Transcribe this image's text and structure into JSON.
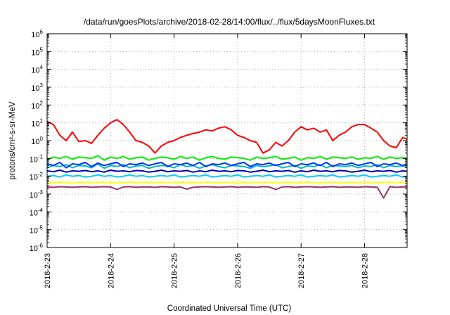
{
  "chart_data": {
    "type": "line",
    "title": "/data/run/goesPlots/archive/2018-02-28/14:00/flux/../flux/5daysMoonFluxes.txt",
    "xlabel": "Coordinated Universal Time (UTC)",
    "ylabel": "protons/cm²-s-sr-MeV",
    "y_scale": "log",
    "ylim": [
      1e-06,
      1000000.0
    ],
    "xlim": [
      "2018-2-23",
      "2018-2-28 16:00"
    ],
    "x_ticks": [
      "2018-2-23",
      "2018-2-24",
      "2018-2-25",
      "2018-2-26",
      "2018-2-27",
      "2018-2-28"
    ],
    "y_ticks": [
      {
        "base": "10",
        "exp": "-6"
      },
      {
        "base": "10",
        "exp": "-5"
      },
      {
        "base": "10",
        "exp": "-4"
      },
      {
        "base": "10",
        "exp": "-3"
      },
      {
        "base": "10",
        "exp": "-2"
      },
      {
        "base": "10",
        "exp": "-1"
      },
      {
        "base": "10",
        "exp": "0"
      },
      {
        "base": "10",
        "exp": "1"
      },
      {
        "base": "10",
        "exp": "2"
      },
      {
        "base": "10",
        "exp": "3"
      },
      {
        "base": "10",
        "exp": "4"
      },
      {
        "base": "10",
        "exp": "5"
      },
      {
        "base": "10",
        "exp": "6"
      }
    ],
    "grid": true,
    "x_days": [
      0,
      0.1,
      0.2,
      0.3,
      0.4,
      0.5,
      0.6,
      0.7,
      0.8,
      0.9,
      1.0,
      1.1,
      1.2,
      1.3,
      1.4,
      1.5,
      1.6,
      1.7,
      1.8,
      1.9,
      2.0,
      2.1,
      2.2,
      2.3,
      2.4,
      2.5,
      2.6,
      2.7,
      2.8,
      2.9,
      3.0,
      3.1,
      3.2,
      3.3,
      3.4,
      3.5,
      3.6,
      3.7,
      3.8,
      3.9,
      4.0,
      4.1,
      4.2,
      4.3,
      4.4,
      4.5,
      4.6,
      4.7,
      4.8,
      4.9,
      5.0,
      5.1,
      5.2,
      5.3,
      5.4,
      5.5,
      5.6,
      5.67
    ],
    "series": [
      {
        "color": "#ff0000",
        "values": [
          12,
          8,
          2,
          1,
          3,
          0.9,
          1,
          0.7,
          2,
          5,
          10,
          15,
          8,
          3,
          1,
          0.8,
          0.5,
          0.2,
          0.5,
          0.8,
          1,
          1.5,
          2,
          2.5,
          3,
          4,
          3.5,
          5,
          6,
          4,
          2,
          1.5,
          1,
          0.8,
          0.2,
          0.3,
          0.8,
          0.5,
          1,
          3,
          6,
          4,
          5,
          3,
          4,
          1,
          2,
          3,
          6,
          8,
          8,
          5,
          3,
          1,
          0.5,
          0.4,
          1.5,
          1.2
        ]
      },
      {
        "color": "#00ee00",
        "values": [
          0.08,
          0.12,
          0.1,
          0.13,
          0.09,
          0.12,
          0.11,
          0.1,
          0.14,
          0.08,
          0.12,
          0.1,
          0.13,
          0.09,
          0.11,
          0.12,
          0.08,
          0.1,
          0.12,
          0.11,
          0.09,
          0.13,
          0.1,
          0.12,
          0.08,
          0.11,
          0.13,
          0.1,
          0.09,
          0.12,
          0.11,
          0.1,
          0.08,
          0.12,
          0.1,
          0.11,
          0.13,
          0.09,
          0.1,
          0.12,
          0.08,
          0.11,
          0.1,
          0.13,
          0.09,
          0.12,
          0.11,
          0.1,
          0.12,
          0.09,
          0.11,
          0.1,
          0.13,
          0.09,
          0.12,
          0.1,
          0.11,
          0.1
        ]
      },
      {
        "color": "#00bbbb",
        "values": [
          0.03,
          0.04,
          0.035,
          0.045,
          0.03,
          0.04,
          0.038,
          0.03,
          0.05,
          0.028,
          0.04,
          0.035,
          0.045,
          0.03,
          0.038,
          0.04,
          0.028,
          0.035,
          0.04,
          0.038,
          0.03,
          0.045,
          0.035,
          0.04,
          0.028,
          0.038,
          0.045,
          0.035,
          0.03,
          0.04,
          0.038,
          0.035,
          0.028,
          0.04,
          0.035,
          0.038,
          0.045,
          0.03,
          0.035,
          0.04,
          0.028,
          0.038,
          0.035,
          0.045,
          0.03,
          0.04,
          0.038,
          0.035,
          0.04,
          0.03,
          0.038,
          0.035,
          0.045,
          0.03,
          0.04,
          0.035,
          0.038,
          0.035
        ]
      },
      {
        "color": "#0033ff",
        "values": [
          0.05,
          0.04,
          0.06,
          0.03,
          0.05,
          0.045,
          0.06,
          0.035,
          0.055,
          0.04,
          0.05,
          0.06,
          0.035,
          0.05,
          0.045,
          0.055,
          0.04,
          0.05,
          0.06,
          0.035,
          0.05,
          0.045,
          0.055,
          0.04,
          0.06,
          0.035,
          0.05,
          0.045,
          0.055,
          0.04,
          0.05,
          0.06,
          0.035,
          0.05,
          0.045,
          0.055,
          0.04,
          0.05,
          0.06,
          0.035,
          0.05,
          0.045,
          0.055,
          0.04,
          0.06,
          0.035,
          0.05,
          0.045,
          0.055,
          0.04,
          0.05,
          0.06,
          0.035,
          0.05,
          0.045,
          0.055,
          0.04,
          0.05
        ]
      },
      {
        "color": "#0000aa",
        "values": [
          0.02,
          0.018,
          0.022,
          0.017,
          0.02,
          0.019,
          0.021,
          0.018,
          0.02,
          0.017,
          0.022,
          0.019,
          0.02,
          0.018,
          0.021,
          0.02,
          0.017,
          0.019,
          0.022,
          0.018,
          0.02,
          0.019,
          0.021,
          0.017,
          0.02,
          0.018,
          0.022,
          0.019,
          0.02,
          0.018,
          0.021,
          0.02,
          0.017,
          0.019,
          0.022,
          0.018,
          0.02,
          0.019,
          0.021,
          0.017,
          0.02,
          0.018,
          0.022,
          0.019,
          0.02,
          0.018,
          0.021,
          0.02,
          0.017,
          0.019,
          0.022,
          0.018,
          0.02,
          0.019,
          0.021,
          0.017,
          0.02,
          0.019
        ]
      },
      {
        "color": "#00ccff",
        "values": [
          0.01,
          0.011,
          0.009,
          0.012,
          0.01,
          0.011,
          0.009,
          0.01,
          0.012,
          0.01,
          0.011,
          0.009,
          0.01,
          0.012,
          0.01,
          0.011,
          0.009,
          0.01,
          0.011,
          0.01,
          0.012,
          0.009,
          0.01,
          0.011,
          0.01,
          0.012,
          0.009,
          0.01,
          0.011,
          0.01,
          0.012,
          0.009,
          0.01,
          0.011,
          0.01,
          0.012,
          0.009,
          0.01,
          0.011,
          0.01,
          0.012,
          0.009,
          0.01,
          0.011,
          0.01,
          0.012,
          0.009,
          0.01,
          0.011,
          0.01,
          0.012,
          0.009,
          0.01,
          0.011,
          0.01,
          0.012,
          0.009,
          0.01
        ]
      },
      {
        "color": "#ffff00",
        "values": [
          0.0045,
          0.0044,
          0.0046,
          0.0045,
          0.0044,
          0.0045,
          0.0046,
          0.0044,
          0.0045,
          0.0046,
          0.0045,
          0.0044,
          0.0045,
          0.0046,
          0.0044,
          0.0045,
          0.0045,
          0.0044,
          0.0046,
          0.0045,
          0.0044,
          0.0045,
          0.0046,
          0.0044,
          0.0045,
          0.0046,
          0.0045,
          0.0044,
          0.0045,
          0.0046,
          0.0044,
          0.0045,
          0.0045,
          0.0044,
          0.0046,
          0.0045,
          0.0044,
          0.0045,
          0.0046,
          0.0044,
          0.0045,
          0.0046,
          0.0045,
          0.0044,
          0.0045,
          0.0046,
          0.0044,
          0.0045,
          0.0045,
          0.0044,
          0.0046,
          0.0045,
          0.0044,
          0.0045,
          0.0046,
          0.0044,
          0.0045,
          0.0045
        ]
      },
      {
        "color": "#993366",
        "values": [
          0.0025,
          0.0024,
          0.0026,
          0.0025,
          0.0024,
          0.0025,
          0.0026,
          0.0024,
          0.0025,
          0.0026,
          0.0025,
          0.0018,
          0.0025,
          0.0026,
          0.0024,
          0.0025,
          0.0025,
          0.0024,
          0.0026,
          0.0025,
          0.0024,
          0.0025,
          0.0019,
          0.0024,
          0.0025,
          0.0026,
          0.0025,
          0.0024,
          0.0025,
          0.0026,
          0.0024,
          0.0025,
          0.0025,
          0.0024,
          0.0026,
          0.0025,
          0.0018,
          0.0025,
          0.0026,
          0.0024,
          0.0025,
          0.0026,
          0.0025,
          0.0024,
          0.0025,
          0.0026,
          0.0024,
          0.0025,
          0.0025,
          0.0024,
          0.0026,
          0.0025,
          0.0024,
          0.0006,
          0.0026,
          0.0024,
          0.0025,
          0.0025
        ]
      }
    ]
  }
}
